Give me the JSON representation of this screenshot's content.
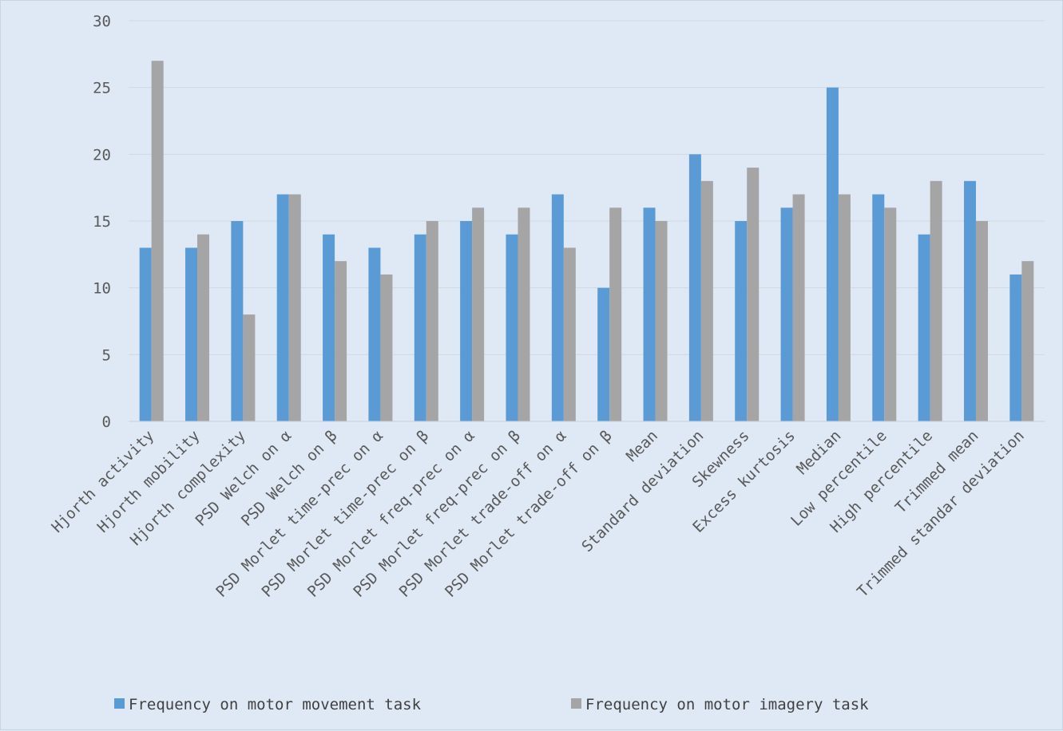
{
  "chart_data": {
    "type": "bar",
    "categories": [
      "Hjorth activity",
      "Hjorth mobility",
      "Hjorth complexity",
      "PSD Welch on α",
      "PSD Welch on β",
      "PSD Morlet time-prec on α",
      "PSD Morlet time-prec on β",
      "PSD Morlet freq-prec on α",
      "PSD Morlet freq-prec on β",
      "PSD Morlet trade-off on α",
      "PSD Morlet trade-off on β",
      "Mean",
      "Standard deviation",
      "Skewness",
      "Excess kurtosis",
      "Median",
      "Low percentile",
      "High percentile",
      "Trimmed mean",
      "Trimmed standar deviation"
    ],
    "series": [
      {
        "name": "Frequency on motor movement task",
        "color": "#5b9bd5",
        "values": [
          13,
          13,
          15,
          17,
          14,
          13,
          14,
          15,
          14,
          17,
          10,
          16,
          20,
          15,
          16,
          25,
          17,
          14,
          18,
          11
        ]
      },
      {
        "name": "Frequency on motor imagery task",
        "color": "#a5a5a5",
        "values": [
          27,
          14,
          8,
          17,
          12,
          11,
          15,
          16,
          16,
          13,
          16,
          15,
          18,
          19,
          17,
          17,
          16,
          18,
          15,
          12
        ]
      }
    ],
    "title": "",
    "xlabel": "",
    "ylabel": "",
    "ylim": [
      0,
      30
    ],
    "yticks": [
      "0",
      "5",
      "10",
      "15",
      "20",
      "25",
      "30"
    ],
    "grid": true,
    "legend_position": "bottom",
    "background_color": "#dfe9f5",
    "gridline_color": "#d0d7e0"
  }
}
